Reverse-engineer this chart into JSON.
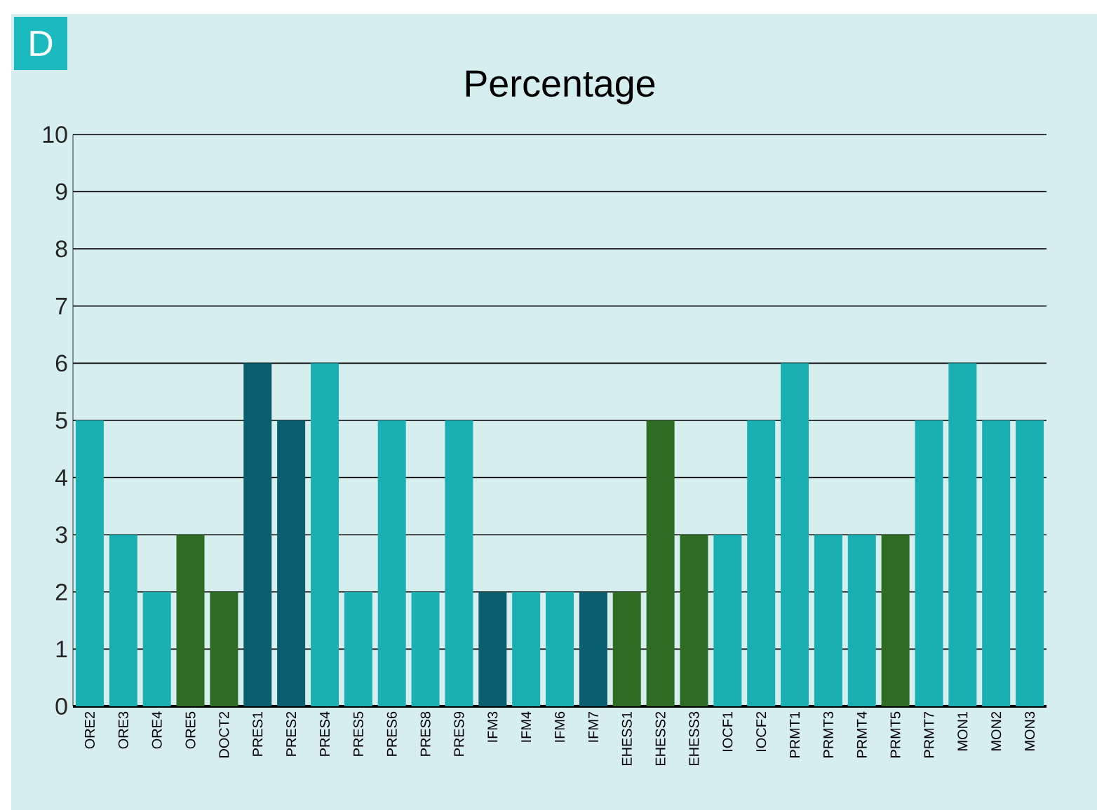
{
  "chart_data": {
    "type": "bar",
    "title": "Percentage",
    "annotations": [
      "D"
    ],
    "categories": [
      "ORE2",
      "ORE3",
      "ORE4",
      "ORE5",
      "DOCT2",
      "PRES1",
      "PRES2",
      "PRES4",
      "PRES5",
      "PRES6",
      "PRES8",
      "PRES9",
      "IFM3",
      "IFM4",
      "IFM6",
      "IFM7",
      "EHESS1",
      "EHESS2",
      "EHESS3",
      "IOCF1",
      "IOCF2",
      "PRMT1",
      "PRMT3",
      "PRMT4",
      "PRMT5",
      "PRMT7",
      "MON1",
      "MON2",
      "MON3"
    ],
    "values": [
      5,
      3,
      2,
      3,
      2,
      6,
      5,
      6,
      2,
      5,
      2,
      5,
      2,
      2,
      2,
      2,
      2,
      5,
      3,
      3,
      5,
      6,
      3,
      3,
      3,
      5,
      6,
      5,
      5
    ],
    "colors": [
      "#1ab0b3",
      "#1ab0b3",
      "#1ab0b3",
      "#2e6b23",
      "#2e6b23",
      "#0a5e6e",
      "#0a5e6e",
      "#1ab0b3",
      "#1ab0b3",
      "#1ab0b3",
      "#1ab0b3",
      "#1ab0b3",
      "#0a5e6e",
      "#1ab0b3",
      "#1ab0b3",
      "#0a5e6e",
      "#2e6b23",
      "#2e6b23",
      "#2e6b23",
      "#1ab0b3",
      "#1ab0b3",
      "#1ab0b3",
      "#1ab0b3",
      "#1ab0b3",
      "#2e6b23",
      "#1ab0b3",
      "#1ab0b3",
      "#1ab0b3",
      "#1ab0b3"
    ],
    "ylim": [
      0,
      10
    ],
    "yticks": [
      0,
      1,
      2,
      3,
      4,
      5,
      6,
      7,
      8,
      9,
      10
    ],
    "grid": "y"
  }
}
